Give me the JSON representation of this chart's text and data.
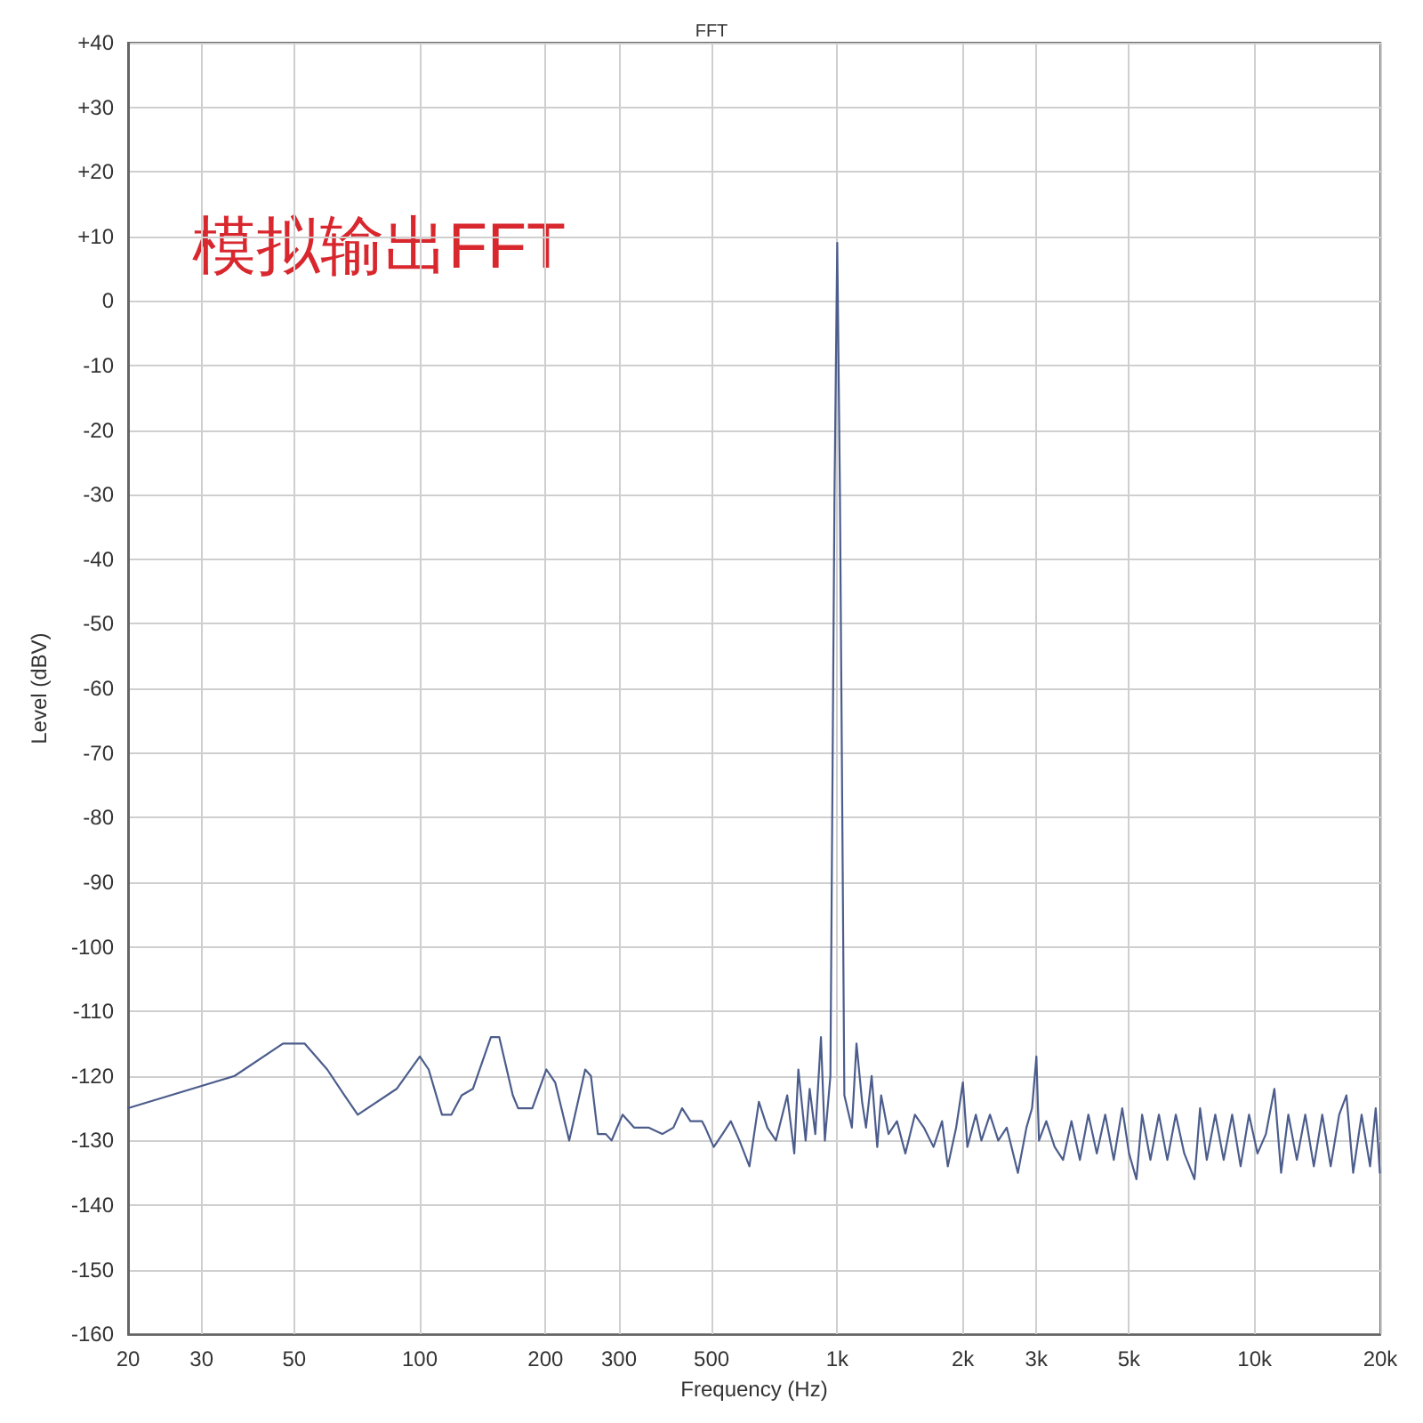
{
  "chart_data": {
    "type": "line",
    "title": "FFT",
    "xlabel": "Frequency (Hz)",
    "ylabel": "Level (dBV)",
    "annotations": [
      "模拟输出FFT"
    ],
    "log": "x",
    "grid": true,
    "marker": "none",
    "line_style": "solid",
    "xlim": [
      20,
      20000
    ],
    "xticks": [
      20,
      30,
      50,
      100,
      200,
      300,
      500,
      {
        "value": 1000,
        "label": "1k"
      },
      {
        "value": 2000,
        "label": "2k"
      },
      {
        "value": 3000,
        "label": "3k"
      },
      {
        "value": 5000,
        "label": "5k"
      },
      {
        "value": 10000,
        "label": "10k"
      },
      {
        "value": 20000,
        "label": "20k"
      }
    ],
    "ylim": [
      -160,
      40
    ],
    "yticks": [
      -160,
      -150,
      -140,
      -130,
      -120,
      -110,
      -100,
      -90,
      -80,
      -70,
      -60,
      -50,
      -40,
      -30,
      -20,
      -10,
      0,
      {
        "value": 10,
        "label": "+10"
      },
      {
        "value": 20,
        "label": "+20"
      },
      {
        "value": 30,
        "label": "+30"
      },
      {
        "value": 40,
        "label": "+40"
      }
    ],
    "x": [
      20,
      36,
      47,
      53,
      60,
      66,
      71,
      88,
      100,
      105,
      113,
      119,
      126,
      134,
      148,
      155,
      167,
      172,
      186,
      201,
      211,
      228,
      249,
      257,
      267,
      279,
      288,
      306,
      326,
      353,
      381,
      405,
      425,
      445,
      474,
      483,
      506,
      531,
      556,
      583,
      616,
      649,
      680,
      713,
      759,
      789,
      807,
      840,
      859,
      886,
      914,
      934,
      963,
      985,
      1000,
      1015,
      1040,
      1084,
      1112,
      1147,
      1172,
      1209,
      1247,
      1274,
      1327,
      1390,
      1456,
      1535,
      1613,
      1701,
      1783,
      1840,
      1927,
      2000,
      2050,
      2148,
      2215,
      2322,
      2431,
      2547,
      2709,
      2840,
      2929,
      3000,
      3043,
      3168,
      3318,
      3475,
      3640,
      3814,
      3996,
      4187,
      4385,
      4597,
      4817,
      5001,
      5209,
      5375,
      5627,
      5897,
      6177,
      6473,
      6782,
      7175,
      7400,
      7680,
      8046,
      8430,
      8833,
      9254,
      9693,
      10160,
      10640,
      11150,
      11570,
      12040,
      12620,
      13220,
      13860,
      14520,
      15210,
      15940,
      16590,
      17220,
      18040,
      18900,
      19500,
      19950
    ],
    "series": [
      {
        "color": "#4c5d8c",
        "values": [
          -125,
          -120,
          -115,
          -115,
          -119,
          -123,
          -126,
          -122,
          -117,
          -119,
          -126,
          -126,
          -123,
          -122,
          -114,
          -114,
          -123,
          -125,
          -125,
          -119,
          -121,
          -130,
          -119,
          -120,
          -129,
          -129,
          -130,
          -126,
          -128,
          -128,
          -129,
          -128,
          -125,
          -127,
          -127,
          -128,
          -131,
          -129,
          -127,
          -130,
          -134,
          -124,
          -128,
          -130,
          -123,
          -132,
          -119,
          -130,
          -122,
          -129,
          -114,
          -130,
          -120,
          -30,
          9,
          -30,
          -123,
          -128,
          -115,
          -124,
          -128,
          -120,
          -131,
          -123,
          -129,
          -127,
          -132,
          -126,
          -128,
          -131,
          -127,
          -134,
          -128,
          -121,
          -131,
          -126,
          -130,
          -126,
          -130,
          -128,
          -135,
          -128,
          -125,
          -117,
          -130,
          -127,
          -131,
          -133,
          -127,
          -133,
          -126,
          -132,
          -126,
          -133,
          -125,
          -132,
          -136,
          -126,
          -133,
          -126,
          -133,
          -126,
          -132,
          -136,
          -125,
          -133,
          -126,
          -133,
          -126,
          -134,
          -126,
          -132,
          -129,
          -122,
          -135,
          -126,
          -133,
          -126,
          -134,
          -126,
          -134,
          -126,
          -123,
          -135,
          -126,
          -134,
          -125,
          -135
        ]
      }
    ]
  }
}
